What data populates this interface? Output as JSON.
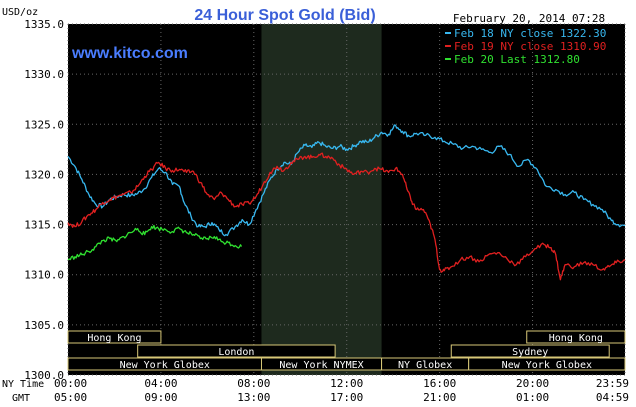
{
  "chart_data": {
    "type": "line",
    "title": "24 Hour Spot Gold (Bid)",
    "date_time": "February 20, 2014 07:28",
    "watermark": "www.kitco.com",
    "ylabel": "USD/oz",
    "ylim": [
      1300,
      1335
    ],
    "grid": true,
    "legend_position": "top-right",
    "y_ticks": [
      "1335.0",
      "1330.0",
      "1325.0",
      "1320.0",
      "1315.0",
      "1310.0",
      "1305.0",
      "1300.0"
    ],
    "x_row_ny_label": "NY Time",
    "x_row_gmt_label": "GMT",
    "x_ticks_ny": [
      "00:00",
      "04:00",
      "08:00",
      "12:00",
      "16:00",
      "20:00",
      "23:59"
    ],
    "x_ticks_gmt": [
      "05:00",
      "09:00",
      "13:00",
      "17:00",
      "21:00",
      "01:00",
      "04:59"
    ],
    "colors": {
      "background": "#000000",
      "grid": "#666666",
      "nymex_shade": "#1e2a1e",
      "feb18": "#38b8f0",
      "feb19": "#e02020",
      "feb20": "#30e030",
      "title": "#3a5fd8",
      "watermark": "#4a7dff",
      "session_text": "#ffffff",
      "session_border": "#d8c878",
      "axis_text": "#000000"
    },
    "series": [
      {
        "name": "Feb 18 NY close 1322.30",
        "color": "#38b8f0",
        "points": [
          [
            0.0,
            1321.8
          ],
          [
            0.3,
            1320.8
          ],
          [
            0.6,
            1319.5
          ],
          [
            0.9,
            1318.0
          ],
          [
            1.2,
            1317.0
          ],
          [
            1.5,
            1316.8
          ],
          [
            1.8,
            1317.5
          ],
          [
            2.1,
            1317.8
          ],
          [
            2.4,
            1318.0
          ],
          [
            2.7,
            1317.9
          ],
          [
            3.0,
            1318.1
          ],
          [
            3.3,
            1318.6
          ],
          [
            3.6,
            1319.7
          ],
          [
            3.9,
            1320.6
          ],
          [
            4.2,
            1320.2
          ],
          [
            4.5,
            1319.0
          ],
          [
            4.8,
            1318.8
          ],
          [
            5.0,
            1317.2
          ],
          [
            5.3,
            1315.8
          ],
          [
            5.6,
            1314.8
          ],
          [
            5.9,
            1314.8
          ],
          [
            6.2,
            1315.2
          ],
          [
            6.5,
            1314.5
          ],
          [
            6.8,
            1314.0
          ],
          [
            7.2,
            1314.8
          ],
          [
            7.5,
            1315.5
          ],
          [
            7.8,
            1315.0
          ],
          [
            8.1,
            1316.5
          ],
          [
            8.4,
            1318.0
          ],
          [
            8.7,
            1319.5
          ],
          [
            9.0,
            1320.5
          ],
          [
            9.3,
            1321.2
          ],
          [
            9.6,
            1321.0
          ],
          [
            9.9,
            1322.2
          ],
          [
            10.2,
            1322.9
          ],
          [
            10.5,
            1322.7
          ],
          [
            10.8,
            1323.2
          ],
          [
            11.1,
            1322.8
          ],
          [
            11.4,
            1322.6
          ],
          [
            11.7,
            1322.8
          ],
          [
            12.0,
            1322.5
          ],
          [
            12.3,
            1322.8
          ],
          [
            12.6,
            1323.3
          ],
          [
            12.9,
            1323.2
          ],
          [
            13.2,
            1323.7
          ],
          [
            13.5,
            1324.2
          ],
          [
            13.8,
            1324.0
          ],
          [
            14.1,
            1324.9
          ],
          [
            14.4,
            1324.3
          ],
          [
            14.7,
            1323.8
          ],
          [
            15.0,
            1324.1
          ],
          [
            15.4,
            1323.9
          ],
          [
            15.8,
            1323.7
          ],
          [
            16.2,
            1323.3
          ],
          [
            16.6,
            1323.0
          ],
          [
            17.0,
            1322.6
          ],
          [
            17.4,
            1322.8
          ],
          [
            17.8,
            1322.5
          ],
          [
            18.2,
            1322.2
          ],
          [
            18.6,
            1322.8
          ],
          [
            19.0,
            1322.0
          ],
          [
            19.4,
            1320.8
          ],
          [
            19.8,
            1321.5
          ],
          [
            20.2,
            1320.5
          ],
          [
            20.6,
            1318.8
          ],
          [
            21.0,
            1318.5
          ],
          [
            21.4,
            1318.0
          ],
          [
            21.8,
            1318.2
          ],
          [
            22.2,
            1317.5
          ],
          [
            22.6,
            1317.0
          ],
          [
            23.0,
            1316.5
          ],
          [
            23.4,
            1315.4
          ],
          [
            23.7,
            1315.0
          ],
          [
            23.98,
            1314.9
          ]
        ]
      },
      {
        "name": "Feb 19 NY close 1310.90",
        "color": "#e02020",
        "points": [
          [
            0.0,
            1315.2
          ],
          [
            0.3,
            1314.8
          ],
          [
            0.6,
            1315.3
          ],
          [
            0.9,
            1316.0
          ],
          [
            1.2,
            1316.5
          ],
          [
            1.5,
            1317.2
          ],
          [
            1.8,
            1317.5
          ],
          [
            2.1,
            1317.8
          ],
          [
            2.4,
            1318.0
          ],
          [
            2.7,
            1318.2
          ],
          [
            3.0,
            1318.8
          ],
          [
            3.3,
            1319.8
          ],
          [
            3.6,
            1320.5
          ],
          [
            3.9,
            1321.2
          ],
          [
            4.2,
            1320.6
          ],
          [
            4.5,
            1320.4
          ],
          [
            4.8,
            1320.5
          ],
          [
            5.1,
            1320.2
          ],
          [
            5.4,
            1320.3
          ],
          [
            5.7,
            1319.2
          ],
          [
            6.0,
            1318.0
          ],
          [
            6.3,
            1317.5
          ],
          [
            6.6,
            1318.2
          ],
          [
            6.9,
            1317.5
          ],
          [
            7.2,
            1316.8
          ],
          [
            7.5,
            1317.0
          ],
          [
            7.8,
            1317.1
          ],
          [
            8.1,
            1317.8
          ],
          [
            8.4,
            1319.0
          ],
          [
            8.7,
            1320.2
          ],
          [
            9.0,
            1320.8
          ],
          [
            9.3,
            1320.4
          ],
          [
            9.6,
            1321.2
          ],
          [
            9.9,
            1321.5
          ],
          [
            10.2,
            1321.8
          ],
          [
            10.5,
            1321.7
          ],
          [
            10.8,
            1322.0
          ],
          [
            11.1,
            1321.8
          ],
          [
            11.4,
            1321.6
          ],
          [
            11.7,
            1320.9
          ],
          [
            12.0,
            1320.5
          ],
          [
            12.3,
            1320.0
          ],
          [
            12.6,
            1320.3
          ],
          [
            12.9,
            1320.2
          ],
          [
            13.2,
            1320.6
          ],
          [
            13.5,
            1320.5
          ],
          [
            13.8,
            1320.2
          ],
          [
            14.1,
            1320.6
          ],
          [
            14.4,
            1320.0
          ],
          [
            14.6,
            1318.5
          ],
          [
            14.8,
            1317.3
          ],
          [
            15.0,
            1316.5
          ],
          [
            15.3,
            1316.5
          ],
          [
            15.6,
            1315.0
          ],
          [
            15.8,
            1313.5
          ],
          [
            16.0,
            1310.5
          ],
          [
            16.2,
            1310.4
          ],
          [
            16.5,
            1310.8
          ],
          [
            16.9,
            1311.5
          ],
          [
            17.3,
            1311.8
          ],
          [
            17.7,
            1311.3
          ],
          [
            18.1,
            1312.0
          ],
          [
            18.5,
            1312.2
          ],
          [
            18.9,
            1311.6
          ],
          [
            19.3,
            1311.0
          ],
          [
            19.7,
            1311.8
          ],
          [
            20.1,
            1312.6
          ],
          [
            20.5,
            1313.0
          ],
          [
            20.8,
            1312.7
          ],
          [
            21.0,
            1312.0
          ],
          [
            21.2,
            1309.5
          ],
          [
            21.4,
            1311.0
          ],
          [
            21.8,
            1310.8
          ],
          [
            22.2,
            1311.2
          ],
          [
            22.6,
            1311.0
          ],
          [
            23.0,
            1310.5
          ],
          [
            23.3,
            1310.8
          ],
          [
            23.6,
            1311.2
          ],
          [
            23.98,
            1311.5
          ]
        ]
      },
      {
        "name": "Feb 20 Last 1312.80",
        "color": "#30e030",
        "points": [
          [
            0.0,
            1311.5
          ],
          [
            0.3,
            1311.8
          ],
          [
            0.6,
            1312.0
          ],
          [
            0.9,
            1312.3
          ],
          [
            1.2,
            1312.8
          ],
          [
            1.5,
            1313.4
          ],
          [
            1.8,
            1313.6
          ],
          [
            2.1,
            1313.3
          ],
          [
            2.4,
            1313.8
          ],
          [
            2.7,
            1314.2
          ],
          [
            3.0,
            1314.6
          ],
          [
            3.3,
            1314.0
          ],
          [
            3.6,
            1314.8
          ],
          [
            3.9,
            1314.6
          ],
          [
            4.2,
            1314.5
          ],
          [
            4.5,
            1314.3
          ],
          [
            4.8,
            1314.6
          ],
          [
            5.1,
            1314.2
          ],
          [
            5.4,
            1314.0
          ],
          [
            5.7,
            1313.6
          ],
          [
            6.0,
            1313.6
          ],
          [
            6.3,
            1313.8
          ],
          [
            6.6,
            1313.3
          ],
          [
            6.9,
            1313.2
          ],
          [
            7.2,
            1312.9
          ],
          [
            7.47,
            1312.8
          ]
        ]
      }
    ],
    "nymex_shade_hours": [
      8.33,
      13.5
    ],
    "sessions": [
      {
        "label": "Hong Kong",
        "row": 0,
        "start": 0.0,
        "end": 4.0
      },
      {
        "label": "Hong Kong",
        "row": 0,
        "start": 19.75,
        "end": 23.98
      },
      {
        "label": "London",
        "row": 1,
        "start": 3.0,
        "end": 11.5
      },
      {
        "label": "Sydney",
        "row": 1,
        "start": 16.5,
        "end": 23.3
      },
      {
        "label": "New York Globex",
        "row": 2,
        "start": 0.0,
        "end": 8.33
      },
      {
        "label": "New York NYMEX",
        "row": 2,
        "start": 8.33,
        "end": 13.5
      },
      {
        "label": "NY Globex",
        "row": 2,
        "start": 13.5,
        "end": 17.25
      },
      {
        "label": "New York Globex",
        "row": 2,
        "start": 17.25,
        "end": 23.98
      }
    ]
  }
}
